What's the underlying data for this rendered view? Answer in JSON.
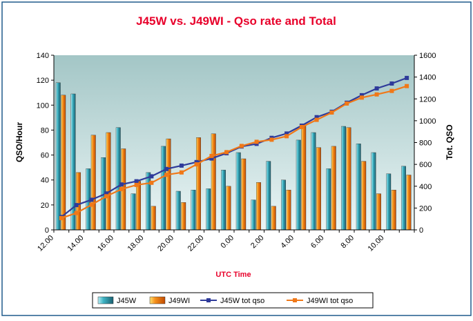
{
  "chart_data": {
    "type": "bar",
    "title": "J45W vs. J49WI  -  Qso rate and Total",
    "xlabel": "UTC Time",
    "ylabel": "QSO/Hour",
    "y2label": "Tot. QSO",
    "ylim": [
      0,
      140
    ],
    "y2lim": [
      0,
      1600
    ],
    "yticks": [
      "0",
      "20",
      "40",
      "60",
      "80",
      "100",
      "120",
      "140"
    ],
    "y2ticks": [
      "0",
      "200",
      "400",
      "600",
      "800",
      "1000",
      "1200",
      "1400",
      "1600"
    ],
    "xticklabels": [
      "12.00",
      "14.00",
      "16.00",
      "18.00",
      "20.00",
      "22.00",
      "0.00",
      "2.00",
      "4.00",
      "6.00",
      "8.00",
      "10.00"
    ],
    "x_hours": [
      "12",
      "13",
      "14",
      "15",
      "16",
      "17",
      "18",
      "19",
      "20",
      "21",
      "22",
      "23",
      "0",
      "1",
      "2",
      "3",
      "4",
      "5",
      "6",
      "7",
      "8",
      "9",
      "10",
      "11"
    ],
    "grid": false,
    "legend_position": "bottom",
    "colors": {
      "title": "#e8002a",
      "xlabel": "#e8002a",
      "plot_top": "#a3c6c6",
      "plot_bottom": "#eaf5f5",
      "bar1": "#2f9fb0",
      "bar2": "#f07a10",
      "line1": "#2e3a9a",
      "line2": "#f07818",
      "frame": "#1e5a8c"
    },
    "series": [
      {
        "name": "J45W",
        "kind": "bar",
        "axis": "left",
        "values": [
          118,
          109,
          49,
          58,
          82,
          29,
          46,
          67,
          31,
          32,
          33,
          48,
          62,
          24,
          55,
          40,
          72,
          78,
          49,
          83,
          69,
          62,
          45,
          51
        ]
      },
      {
        "name": "J49WI",
        "kind": "bar",
        "axis": "left",
        "values": [
          108,
          46,
          76,
          78,
          65,
          39,
          19,
          73,
          22,
          74,
          77,
          35,
          57,
          38,
          19,
          32,
          84,
          66,
          67,
          82,
          55,
          29,
          32,
          44
        ]
      },
      {
        "name": "J45W tot qso",
        "kind": "line",
        "axis": "right",
        "values": [
          118,
          227,
          276,
          334,
          416,
          445,
          491,
          558,
          589,
          621,
          654,
          702,
          764,
          788,
          843,
          883,
          955,
          1033,
          1082,
          1165,
          1234,
          1296,
          1341,
          1392
        ]
      },
      {
        "name": "J49WI tot qso",
        "kind": "line",
        "axis": "right",
        "values": [
          108,
          154,
          230,
          308,
          373,
          412,
          431,
          504,
          526,
          600,
          677,
          712,
          769,
          807,
          826,
          858,
          942,
          1008,
          1075,
          1157,
          1212,
          1241,
          1273,
          1317
        ]
      }
    ]
  }
}
